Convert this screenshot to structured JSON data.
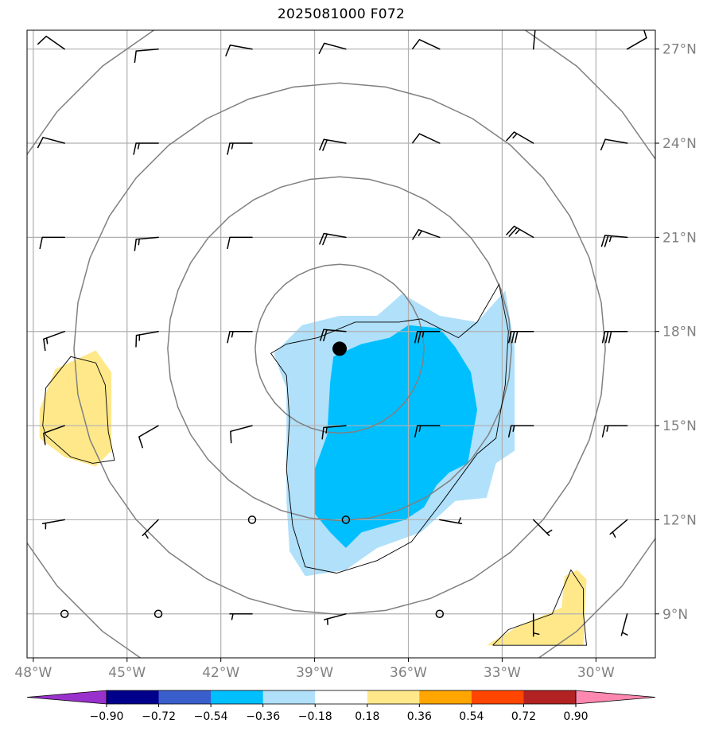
{
  "title": "2025081000 F072",
  "chart_data": {
    "type": "map-contour",
    "title": "2025081000 F072",
    "lon_range": [
      -48.2,
      -28.1
    ],
    "lat_range": [
      7.6,
      27.6
    ],
    "lon_ticks": [
      -48,
      -45,
      -42,
      -39,
      -36,
      -33,
      -30
    ],
    "lon_tick_labels": [
      "48°W",
      "45°W",
      "42°W",
      "39°W",
      "36°W",
      "33°W",
      "30°W"
    ],
    "lat_ticks": [
      9,
      12,
      15,
      18,
      21,
      24,
      27
    ],
    "lat_tick_labels": [
      "9°N",
      "12°N",
      "15°N",
      "18°N",
      "21°N",
      "24°N",
      "27°N"
    ],
    "grid": true,
    "center_marker": {
      "lon": -38.2,
      "lat": 17.45
    },
    "range_rings_deg": [
      2.7,
      5.5,
      8.5,
      11.8
    ],
    "colorbar": {
      "levels": [
        -0.9,
        -0.72,
        -0.54,
        -0.36,
        -0.18,
        0.18,
        0.36,
        0.54,
        0.72,
        0.9
      ],
      "labels": [
        "−0.90",
        "−0.72",
        "−0.54",
        "−0.36",
        "−0.18",
        "0.18",
        "0.36",
        "0.54",
        "0.72",
        "0.90"
      ],
      "colors": [
        "#9932cc",
        "#00008b",
        "#3a5fcd",
        "#00bfff",
        "#b0e0fa",
        "#ffffff",
        "#ffe88a",
        "#ffa500",
        "#ff4500",
        "#b22222",
        "#ff88b0"
      ],
      "extend": "both"
    },
    "shaded_regions": [
      {
        "level_range": [
          -0.36,
          -0.18
        ],
        "color": "#b0e0fa",
        "lonlat": [
          [
            -40.3,
            17.3
          ],
          [
            -39.4,
            18.2
          ],
          [
            -38.2,
            18.5
          ],
          [
            -37.0,
            18.5
          ],
          [
            -36.2,
            19.2
          ],
          [
            -35.0,
            18.5
          ],
          [
            -33.8,
            18.3
          ],
          [
            -32.9,
            19.3
          ],
          [
            -32.6,
            17.5
          ],
          [
            -32.6,
            14.2
          ],
          [
            -33.2,
            13.8
          ],
          [
            -33.5,
            12.7
          ],
          [
            -34.5,
            12.6
          ],
          [
            -35.6,
            11.6
          ],
          [
            -37.0,
            11.1
          ],
          [
            -38.0,
            10.4
          ],
          [
            -39.3,
            10.2
          ],
          [
            -39.8,
            11.0
          ],
          [
            -39.9,
            12.6
          ],
          [
            -39.9,
            16.2
          ],
          [
            -40.1,
            16.7
          ]
        ]
      },
      {
        "level_range": [
          -0.54,
          -0.36
        ],
        "color": "#00bfff",
        "lonlat": [
          [
            -39.0,
            13.6
          ],
          [
            -38.6,
            14.7
          ],
          [
            -38.5,
            16.4
          ],
          [
            -38.4,
            17.2
          ],
          [
            -37.5,
            17.6
          ],
          [
            -36.6,
            17.8
          ],
          [
            -36.0,
            18.2
          ],
          [
            -35.0,
            18.1
          ],
          [
            -34.5,
            17.5
          ],
          [
            -34.0,
            16.7
          ],
          [
            -33.8,
            15.5
          ],
          [
            -34.1,
            13.8
          ],
          [
            -34.7,
            13.5
          ],
          [
            -35.1,
            13.1
          ],
          [
            -35.5,
            12.4
          ],
          [
            -36.1,
            12.0
          ],
          [
            -37.5,
            11.6
          ],
          [
            -38.0,
            11.1
          ],
          [
            -38.5,
            11.6
          ],
          [
            -39.0,
            12.2
          ]
        ]
      },
      {
        "level_range": [
          0.18,
          0.36
        ],
        "color": "#ffe88a",
        "lonlat": [
          [
            -47.8,
            15.5
          ],
          [
            -47.3,
            16.8
          ],
          [
            -46.0,
            17.4
          ],
          [
            -45.5,
            16.7
          ],
          [
            -45.5,
            14.2
          ],
          [
            -46.0,
            13.7
          ],
          [
            -47.0,
            14.0
          ],
          [
            -47.8,
            14.6
          ]
        ]
      },
      {
        "level_range": [
          0.18,
          0.36
        ],
        "color": "#ffe88a",
        "lonlat": [
          [
            -33.0,
            8.3
          ],
          [
            -32.5,
            8.6
          ],
          [
            -31.1,
            9.2
          ],
          [
            -31.0,
            10.2
          ],
          [
            -30.6,
            10.4
          ],
          [
            -30.3,
            10.1
          ],
          [
            -30.4,
            8.0
          ],
          [
            -33.5,
            8.0
          ]
        ]
      }
    ],
    "contours_black": [
      {
        "lonlat": [
          [
            -47.7,
            15.0
          ],
          [
            -47.6,
            16.2
          ],
          [
            -46.8,
            17.2
          ],
          [
            -46.0,
            17.0
          ],
          [
            -45.7,
            16.3
          ],
          [
            -45.6,
            14.8
          ],
          [
            -45.4,
            13.9
          ],
          [
            -46.1,
            13.8
          ],
          [
            -46.8,
            14.0
          ],
          [
            -47.6,
            14.7
          ]
        ]
      },
      {
        "lonlat": [
          [
            -38.9,
            17.8
          ],
          [
            -37.7,
            18.3
          ],
          [
            -36.3,
            18.3
          ],
          [
            -35.6,
            18.4
          ],
          [
            -34.4,
            17.8
          ],
          [
            -33.8,
            18.3
          ],
          [
            -33.1,
            19.5
          ],
          [
            -32.8,
            18.0
          ],
          [
            -32.9,
            16.3
          ],
          [
            -33.2,
            14.6
          ],
          [
            -33.8,
            14.1
          ],
          [
            -34.9,
            12.6
          ],
          [
            -35.9,
            11.3
          ],
          [
            -37.0,
            10.7
          ],
          [
            -38.3,
            10.3
          ],
          [
            -39.3,
            10.5
          ],
          [
            -39.7,
            11.8
          ],
          [
            -39.9,
            13.6
          ],
          [
            -39.8,
            15.2
          ],
          [
            -39.9,
            16.6
          ],
          [
            -40.4,
            17.3
          ],
          [
            -39.9,
            17.6
          ]
        ]
      },
      {
        "lonlat": [
          [
            -33.3,
            8.0
          ],
          [
            -32.8,
            8.5
          ],
          [
            -31.4,
            9.0
          ],
          [
            -30.8,
            10.4
          ],
          [
            -30.4,
            9.8
          ],
          [
            -30.4,
            9.0
          ],
          [
            -30.3,
            8.0
          ]
        ]
      }
    ],
    "barbs": [
      {
        "lon": -47,
        "lat": 27,
        "dir": 305,
        "spd": 10
      },
      {
        "lon": -44,
        "lat": 27,
        "dir": 265,
        "spd": 10
      },
      {
        "lon": -41,
        "lat": 27,
        "dir": 280,
        "spd": 10
      },
      {
        "lon": -38,
        "lat": 27,
        "dir": 285,
        "spd": 10
      },
      {
        "lon": -35,
        "lat": 27,
        "dir": 295,
        "spd": 10
      },
      {
        "lon": -32,
        "lat": 27,
        "dir": 5,
        "spd": 10
      },
      {
        "lon": -29,
        "lat": 27,
        "dir": 60,
        "spd": 10
      },
      {
        "lon": -47,
        "lat": 24,
        "dir": 285,
        "spd": 10
      },
      {
        "lon": -44,
        "lat": 24,
        "dir": 270,
        "spd": 15
      },
      {
        "lon": -41,
        "lat": 24,
        "dir": 270,
        "spd": 15
      },
      {
        "lon": -38,
        "lat": 24,
        "dir": 280,
        "spd": 20
      },
      {
        "lon": -35,
        "lat": 24,
        "dir": 295,
        "spd": 10
      },
      {
        "lon": -32,
        "lat": 24,
        "dir": 300,
        "spd": 15
      },
      {
        "lon": -29,
        "lat": 24,
        "dir": 280,
        "spd": 10
      },
      {
        "lon": -47,
        "lat": 21,
        "dir": 270,
        "spd": 10
      },
      {
        "lon": -44,
        "lat": 21,
        "dir": 265,
        "spd": 15
      },
      {
        "lon": -41,
        "lat": 21,
        "dir": 270,
        "spd": 10
      },
      {
        "lon": -38,
        "lat": 21,
        "dir": 280,
        "spd": 20
      },
      {
        "lon": -35,
        "lat": 21,
        "dir": 290,
        "spd": 15
      },
      {
        "lon": -32,
        "lat": 21,
        "dir": 300,
        "spd": 25
      },
      {
        "lon": -29,
        "lat": 21,
        "dir": 275,
        "spd": 25
      },
      {
        "lon": -47,
        "lat": 18,
        "dir": 250,
        "spd": 15
      },
      {
        "lon": -44,
        "lat": 18,
        "dir": 260,
        "spd": 15
      },
      {
        "lon": -41,
        "lat": 18,
        "dir": 270,
        "spd": 15
      },
      {
        "lon": -38,
        "lat": 18,
        "dir": 275,
        "spd": 20
      },
      {
        "lon": -35,
        "lat": 18,
        "dir": 270,
        "spd": 25
      },
      {
        "lon": -32,
        "lat": 18,
        "dir": 270,
        "spd": 30
      },
      {
        "lon": -29,
        "lat": 18,
        "dir": 270,
        "spd": 30
      },
      {
        "lon": -47,
        "lat": 15,
        "dir": 250,
        "spd": 10
      },
      {
        "lon": -44,
        "lat": 15,
        "dir": 240,
        "spd": 10
      },
      {
        "lon": -41,
        "lat": 15,
        "dir": 255,
        "spd": 10
      },
      {
        "lon": -38,
        "lat": 15,
        "dir": 265,
        "spd": 15
      },
      {
        "lon": -35,
        "lat": 15,
        "dir": 270,
        "spd": 15
      },
      {
        "lon": -32,
        "lat": 15,
        "dir": 270,
        "spd": 15
      },
      {
        "lon": -29,
        "lat": 15,
        "dir": 270,
        "spd": 15
      },
      {
        "lon": -47,
        "lat": 12,
        "dir": 260,
        "spd": 5
      },
      {
        "lon": -44,
        "lat": 12,
        "dir": 225,
        "spd": 5
      },
      {
        "lon": -41,
        "lat": 12,
        "dir": 0,
        "spd": 0
      },
      {
        "lon": -38,
        "lat": 12,
        "dir": 0,
        "spd": 0
      },
      {
        "lon": -35,
        "lat": 12,
        "dir": 100,
        "spd": 5
      },
      {
        "lon": -32,
        "lat": 12,
        "dir": 135,
        "spd": 5
      },
      {
        "lon": -29,
        "lat": 12,
        "dir": 230,
        "spd": 5
      },
      {
        "lon": -47,
        "lat": 9,
        "dir": 0,
        "spd": 0
      },
      {
        "lon": -44,
        "lat": 9,
        "dir": 0,
        "spd": 0
      },
      {
        "lon": -41,
        "lat": 9,
        "dir": 270,
        "spd": 5
      },
      {
        "lon": -38,
        "lat": 9,
        "dir": 255,
        "spd": 5
      },
      {
        "lon": -35,
        "lat": 9,
        "dir": 0,
        "spd": 0
      },
      {
        "lon": -32,
        "lat": 9,
        "dir": 180,
        "spd": 5
      },
      {
        "lon": -29,
        "lat": 9,
        "dir": 195,
        "spd": 5
      }
    ]
  }
}
